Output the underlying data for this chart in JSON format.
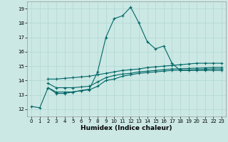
{
  "xlabel": "Humidex (Indice chaleur)",
  "background_color": "#cbe8e4",
  "grid_color": "#b0d8d4",
  "line_color": "#006666",
  "x_ticks": [
    0,
    1,
    2,
    3,
    4,
    5,
    6,
    7,
    8,
    9,
    10,
    11,
    12,
    13,
    14,
    15,
    16,
    17,
    18,
    19,
    20,
    21,
    22,
    23
  ],
  "ylim": [
    11.5,
    19.5
  ],
  "xlim": [
    -0.5,
    23.5
  ],
  "yticks": [
    12,
    13,
    14,
    15,
    16,
    17,
    18,
    19
  ],
  "line1_x": [
    0,
    1,
    2,
    3,
    4,
    5,
    6,
    7,
    8,
    9,
    10,
    11,
    12,
    13,
    14,
    15,
    16,
    17,
    18,
    19,
    20,
    21,
    22,
    23
  ],
  "line1_y": [
    12.2,
    12.1,
    13.5,
    13.1,
    13.1,
    13.2,
    13.3,
    13.4,
    14.6,
    17.0,
    18.3,
    18.5,
    19.1,
    18.0,
    16.7,
    16.2,
    16.4,
    15.2,
    14.7,
    14.7,
    14.7,
    14.7,
    14.7,
    14.7
  ],
  "line2_x": [
    2,
    3,
    4,
    5,
    6,
    7,
    8,
    9,
    10,
    11,
    12,
    13,
    14,
    15,
    16,
    17,
    18,
    19,
    20,
    21,
    22,
    23
  ],
  "line2_y": [
    14.1,
    14.1,
    14.15,
    14.2,
    14.25,
    14.3,
    14.4,
    14.5,
    14.6,
    14.7,
    14.75,
    14.8,
    14.9,
    14.95,
    15.0,
    15.05,
    15.1,
    15.15,
    15.2,
    15.2,
    15.2,
    15.2
  ],
  "line3_x": [
    2,
    3,
    4,
    5,
    6,
    7,
    8,
    9,
    10,
    11,
    12,
    13,
    14,
    15,
    16,
    17,
    18,
    19,
    20,
    21,
    22,
    23
  ],
  "line3_y": [
    13.5,
    13.2,
    13.2,
    13.2,
    13.3,
    13.35,
    13.6,
    14.0,
    14.1,
    14.3,
    14.4,
    14.5,
    14.55,
    14.6,
    14.65,
    14.7,
    14.72,
    14.74,
    14.76,
    14.78,
    14.8,
    14.8
  ],
  "line4_x": [
    2,
    3,
    4,
    5,
    6,
    7,
    8,
    9,
    10,
    11,
    12,
    13,
    14,
    15,
    16,
    17,
    18,
    19,
    20,
    21,
    22,
    23
  ],
  "line4_y": [
    13.8,
    13.5,
    13.5,
    13.5,
    13.55,
    13.6,
    13.9,
    14.2,
    14.35,
    14.45,
    14.5,
    14.6,
    14.65,
    14.7,
    14.75,
    14.8,
    14.82,
    14.84,
    14.86,
    14.88,
    14.9,
    14.9
  ]
}
